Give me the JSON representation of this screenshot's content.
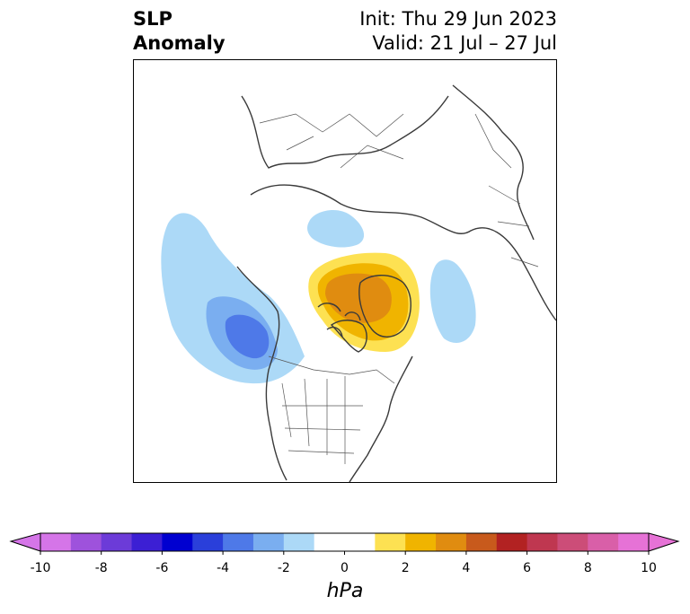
{
  "title": {
    "variable_line1": "SLP",
    "variable_line2": "Anomaly",
    "init": "Init: Thu 29 Jun 2023",
    "valid": "Valid: 21 Jul – 27 Jul"
  },
  "map": {
    "projection": "north-polar-stereographic",
    "region": "North America / North Atlantic / Arctic",
    "anomalies": [
      {
        "name": "north-pacific-low",
        "sign": "negative",
        "peak_hPa": -5
      },
      {
        "name": "greenland-high",
        "sign": "positive",
        "peak_hPa": 4
      },
      {
        "name": "arctic-siberia-low",
        "sign": "negative",
        "peak_hPa": -1
      },
      {
        "name": "norwegian-sea-low",
        "sign": "negative",
        "peak_hPa": -1
      }
    ]
  },
  "colorbar": {
    "unit": "hPa",
    "ticks": [
      "-10",
      "-8",
      "-6",
      "-4",
      "-2",
      "0",
      "2",
      "4",
      "6",
      "8",
      "10"
    ],
    "colors": [
      "#d575e8",
      "#9e52dc",
      "#6c3bd8",
      "#3c1fd4",
      "#0000d0",
      "#2a3fda",
      "#4e79e8",
      "#7aaef0",
      "#acd9f7",
      "#ffffff",
      "#ffffff",
      "#fde152",
      "#f0b400",
      "#e08c10",
      "#c85a1c",
      "#b22222",
      "#bf3750",
      "#cc4d78",
      "#d95fa8",
      "#e672d6"
    ],
    "extend_low_color": "#d575e8",
    "extend_high_color": "#e672d6"
  }
}
